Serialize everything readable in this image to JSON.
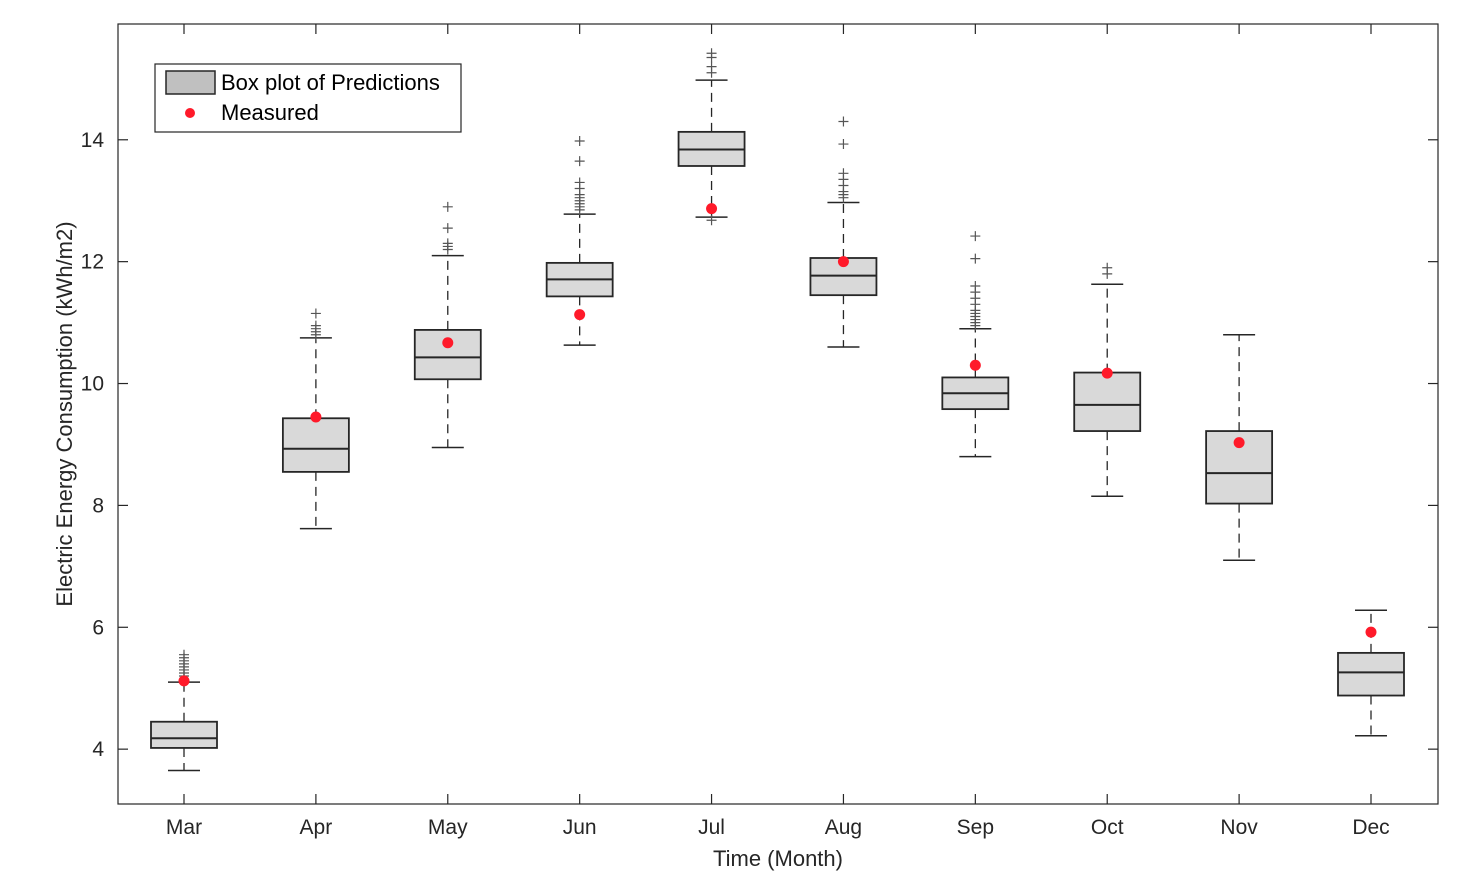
{
  "chart_data": {
    "type": "box",
    "title": "",
    "xlabel": "Time (Month)",
    "ylabel": "Electric Energy Consumption (kWh/m2)",
    "ylim": [
      3.1,
      15.9
    ],
    "yticks": [
      4,
      6,
      8,
      10,
      12,
      14
    ],
    "grid": false,
    "legend_position": "top-left",
    "legend": {
      "box_label": "Box plot of Predictions",
      "measured_label": "Measured"
    },
    "categories": [
      "Mar",
      "Apr",
      "May",
      "Jun",
      "Jul",
      "Aug",
      "Sep",
      "Oct",
      "Nov",
      "Dec"
    ],
    "boxes": [
      {
        "category": "Mar",
        "whisker_low": 3.65,
        "q1": 4.02,
        "median": 4.18,
        "q3": 4.45,
        "whisker_high": 5.1,
        "outliers": [
          5.15,
          5.2,
          5.25,
          5.3,
          5.35,
          5.4,
          5.45,
          5.5,
          5.55
        ],
        "measured": 5.12
      },
      {
        "category": "Apr",
        "whisker_low": 7.62,
        "q1": 8.55,
        "median": 8.93,
        "q3": 9.43,
        "whisker_high": 10.75,
        "outliers": [
          10.8,
          10.85,
          10.9,
          10.95,
          11.15
        ],
        "measured": 9.45
      },
      {
        "category": "May",
        "whisker_low": 8.95,
        "q1": 10.07,
        "median": 10.43,
        "q3": 10.88,
        "whisker_high": 12.1,
        "outliers": [
          12.2,
          12.25,
          12.3,
          12.55,
          12.9
        ],
        "measured": 10.67
      },
      {
        "category": "Jun",
        "whisker_low": 10.63,
        "q1": 11.43,
        "median": 11.71,
        "q3": 11.98,
        "whisker_high": 12.78,
        "outliers": [
          12.85,
          12.9,
          12.95,
          13.0,
          13.05,
          13.1,
          13.2,
          13.3,
          13.65,
          13.98
        ],
        "measured": 11.13
      },
      {
        "category": "Jul",
        "whisker_low": 12.73,
        "q1": 13.57,
        "median": 13.84,
        "q3": 14.13,
        "whisker_high": 14.98,
        "outliers": [
          12.68,
          15.1,
          15.2,
          15.35,
          15.42
        ],
        "measured": 12.87
      },
      {
        "category": "Aug",
        "whisker_low": 10.6,
        "q1": 11.45,
        "median": 11.77,
        "q3": 12.06,
        "whisker_high": 12.97,
        "outliers": [
          13.05,
          13.1,
          13.15,
          13.25,
          13.35,
          13.45,
          13.93,
          14.3
        ],
        "measured": 12.0
      },
      {
        "category": "Sep",
        "whisker_low": 8.8,
        "q1": 9.58,
        "median": 9.84,
        "q3": 10.1,
        "whisker_high": 10.9,
        "outliers": [
          10.95,
          11.0,
          11.05,
          11.1,
          11.15,
          11.2,
          11.3,
          11.4,
          11.5,
          11.6,
          12.05,
          12.42
        ],
        "measured": 10.3
      },
      {
        "category": "Oct",
        "whisker_low": 8.15,
        "q1": 9.22,
        "median": 9.65,
        "q3": 10.18,
        "whisker_high": 11.63,
        "outliers": [
          11.8,
          11.9
        ],
        "measured": 10.17
      },
      {
        "category": "Nov",
        "whisker_low": 7.1,
        "q1": 8.03,
        "median": 8.53,
        "q3": 9.22,
        "whisker_high": 10.8,
        "outliers": [],
        "measured": 9.03
      },
      {
        "category": "Dec",
        "whisker_low": 4.22,
        "q1": 4.88,
        "median": 5.26,
        "q3": 5.58,
        "whisker_high": 6.28,
        "outliers": [],
        "measured": 5.92
      }
    ],
    "colors": {
      "box_fill": "#d9d9d9",
      "box_stroke": "#262626",
      "legend_swatch_fill": "#c0c0c0",
      "measured": "#ff1a2a",
      "outlier": "#555555",
      "axis": "#262626"
    }
  }
}
